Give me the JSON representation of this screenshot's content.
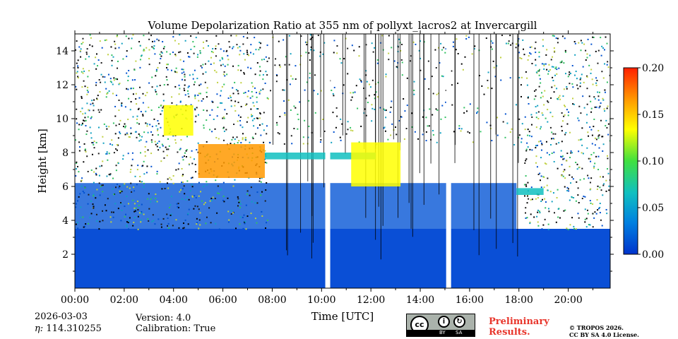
{
  "chart_data": {
    "type": "heatmap",
    "title": "Volume Depolarization Ratio at 355 nm of pollyxt_lacros2 at Invercargill",
    "xlabel": "Time [UTC]",
    "ylabel": "Height [km]",
    "xlim_hours": [
      0,
      21.7
    ],
    "ylim_km": [
      0,
      15
    ],
    "x_ticks": [
      {
        "hours": 0,
        "label": "00:00"
      },
      {
        "hours": 2,
        "label": "02:00"
      },
      {
        "hours": 4,
        "label": "04:00"
      },
      {
        "hours": 6,
        "label": "06:00"
      },
      {
        "hours": 8,
        "label": "08:00"
      },
      {
        "hours": 10,
        "label": "10:00"
      },
      {
        "hours": 12,
        "label": "12:00"
      },
      {
        "hours": 14,
        "label": "14:00"
      },
      {
        "hours": 16,
        "label": "16:00"
      },
      {
        "hours": 18,
        "label": "18:00"
      },
      {
        "hours": 20,
        "label": "20:00"
      }
    ],
    "y_ticks": [
      {
        "km": 2,
        "label": "2"
      },
      {
        "km": 4,
        "label": "4"
      },
      {
        "km": 6,
        "label": "6"
      },
      {
        "km": 8,
        "label": "8"
      },
      {
        "km": 10,
        "label": "10"
      },
      {
        "km": 12,
        "label": "12"
      },
      {
        "km": 14,
        "label": "14"
      }
    ],
    "colorbar": {
      "range": [
        0.0,
        0.2
      ],
      "ticks": [
        {
          "value": 0.0,
          "label": "0.00"
        },
        {
          "value": 0.05,
          "label": "0.05"
        },
        {
          "value": 0.1,
          "label": "0.10"
        },
        {
          "value": 0.15,
          "label": "0.15"
        },
        {
          "value": 0.2,
          "label": "0.20"
        }
      ]
    },
    "data_gaps_hours": [
      {
        "start": 10.15,
        "end": 10.35
      },
      {
        "start": 15.05,
        "end": 15.25
      }
    ],
    "cloud_layers": [
      {
        "start_h": 5.0,
        "end_h": 7.7,
        "bottom_km": 6.5,
        "top_km": 8.5,
        "depol": 0.17
      },
      {
        "start_h": 3.6,
        "end_h": 4.8,
        "bottom_km": 9.0,
        "top_km": 10.8,
        "depol": 0.13
      },
      {
        "start_h": 7.7,
        "end_h": 12.2,
        "bottom_km": 7.6,
        "top_km": 8.0,
        "depol": 0.06
      },
      {
        "start_h": 11.2,
        "end_h": 13.2,
        "bottom_km": 6.0,
        "top_km": 8.6,
        "depol": 0.15
      },
      {
        "start_h": 17.9,
        "end_h": 19.0,
        "bottom_km": 5.5,
        "top_km": 5.9,
        "depol": 0.08
      }
    ]
  },
  "footer": {
    "date": "2026-03-03",
    "eta": "114.310255",
    "eta_label": "η: ",
    "version": "Version: 4.0",
    "calibration": "Calibration: True",
    "preliminary_line1": "Preliminary",
    "preliminary_line2": "Results.",
    "copyright_line1": "© TROPOS 2026.",
    "copyright_line2": "CC BY SA 4.0 License.",
    "cc_label": "cc",
    "by_label": "BY",
    "sa_label": "SA"
  },
  "colors": {
    "scale": [
      "#0033cc",
      "#0080e0",
      "#10c0c0",
      "#40e040",
      "#ffff00",
      "#ff9900",
      "#ff2000"
    ]
  }
}
